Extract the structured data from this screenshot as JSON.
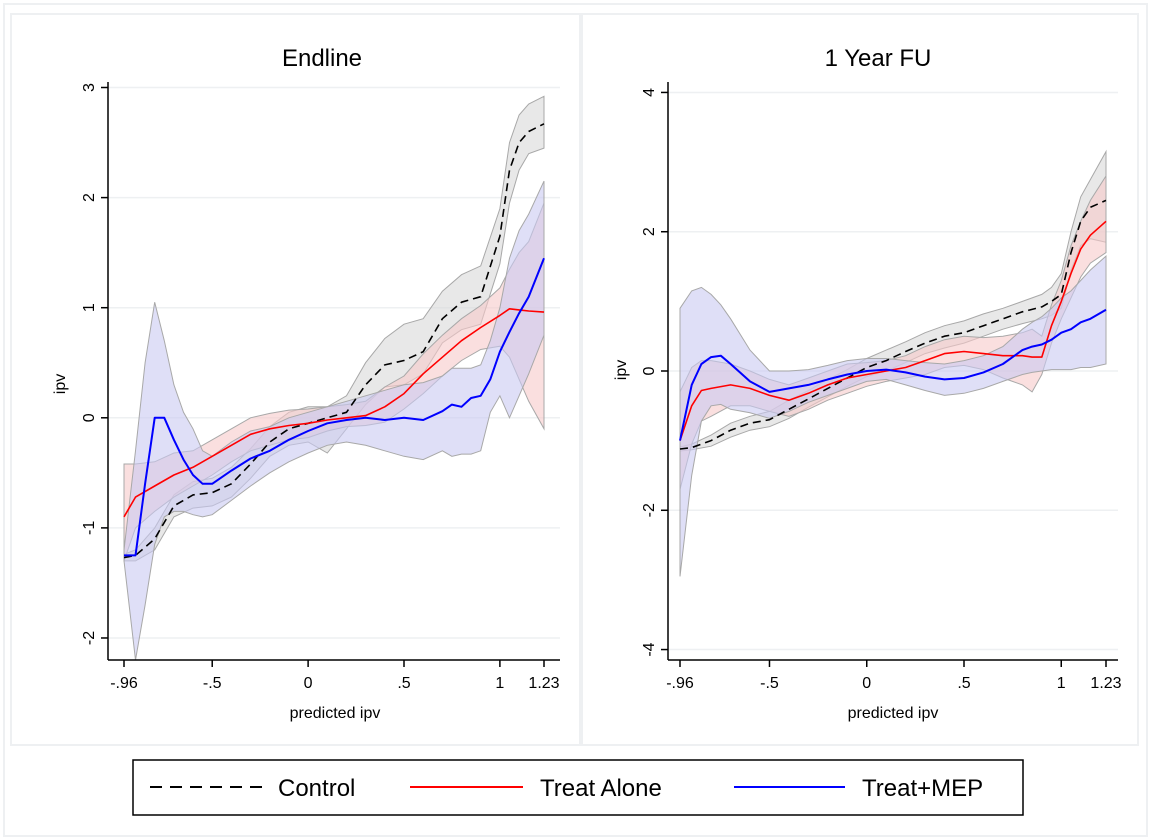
{
  "colors": {
    "control": "#000000",
    "treat_alone": "#ff0000",
    "treat_mep": "#0000ff",
    "control_band": "#d9d9d9",
    "treat_alone_band": "#f7caca",
    "treat_mep_band": "#c9c9f2",
    "band_edge": "#a8a8a8",
    "grid": "#eef0f2"
  },
  "legend": {
    "control": "Control",
    "treat_alone": "Treat Alone",
    "treat_mep": "Treat+MEP",
    "placement": "bottom"
  },
  "chart_data": [
    {
      "type": "line",
      "title": "Endline",
      "xlabel": "predicted ipv",
      "ylabel": "ipv",
      "xlim": [
        -0.96,
        1.23
      ],
      "ylim": [
        -2.2,
        3.05
      ],
      "xticks": [
        -0.96,
        -0.5,
        0,
        0.5,
        1,
        1.23
      ],
      "xtick_labels": [
        "-.96",
        "-.5",
        "0",
        ".5",
        "1",
        "1.23"
      ],
      "yticks": [
        -2,
        -1,
        0,
        1,
        2,
        3
      ],
      "ytick_labels": [
        "-2",
        "-1",
        "0",
        "1",
        "2",
        "3"
      ],
      "grid": true,
      "series": [
        {
          "key": "control",
          "name": "Control",
          "style": "dashed",
          "x": [
            -0.96,
            -0.9,
            -0.8,
            -0.7,
            -0.6,
            -0.5,
            -0.4,
            -0.3,
            -0.2,
            -0.1,
            0,
            0.1,
            0.2,
            0.3,
            0.4,
            0.5,
            0.6,
            0.7,
            0.8,
            0.9,
            1.0,
            1.05,
            1.1,
            1.15,
            1.23
          ],
          "y": [
            -1.27,
            -1.25,
            -1.1,
            -0.8,
            -0.7,
            -0.68,
            -0.6,
            -0.42,
            -0.22,
            -0.1,
            -0.05,
            0.0,
            0.05,
            0.3,
            0.48,
            0.52,
            0.6,
            0.9,
            1.05,
            1.1,
            1.65,
            2.25,
            2.5,
            2.6,
            2.67
          ],
          "lower": [
            -1.3,
            -1.3,
            -1.2,
            -0.9,
            -0.82,
            -0.8,
            -0.72,
            -0.55,
            -0.35,
            -0.25,
            -0.22,
            -0.32,
            -0.1,
            0.12,
            0.28,
            0.3,
            0.4,
            0.68,
            0.8,
            0.85,
            1.4,
            1.95,
            2.25,
            2.4,
            2.45
          ],
          "upper": [
            -1.24,
            -1.2,
            -1.0,
            -0.7,
            -0.58,
            -0.55,
            -0.45,
            -0.28,
            -0.08,
            0.05,
            0.1,
            0.1,
            0.2,
            0.5,
            0.72,
            0.85,
            0.9,
            1.15,
            1.3,
            1.38,
            1.9,
            2.5,
            2.75,
            2.85,
            2.92
          ]
        },
        {
          "key": "treat_alone",
          "name": "Treat Alone",
          "style": "solid",
          "x": [
            -0.96,
            -0.9,
            -0.8,
            -0.7,
            -0.6,
            -0.5,
            -0.4,
            -0.3,
            -0.2,
            -0.1,
            0,
            0.1,
            0.2,
            0.3,
            0.4,
            0.5,
            0.6,
            0.7,
            0.8,
            0.9,
            1.0,
            1.05,
            1.1,
            1.15,
            1.23
          ],
          "y": [
            -0.9,
            -0.72,
            -0.62,
            -0.52,
            -0.45,
            -0.35,
            -0.25,
            -0.15,
            -0.1,
            -0.07,
            -0.05,
            -0.02,
            0.0,
            0.02,
            0.1,
            0.22,
            0.4,
            0.55,
            0.7,
            0.82,
            0.93,
            0.99,
            0.98,
            0.97,
            0.96
          ],
          "lower": [
            -1.3,
            -1.0,
            -0.85,
            -0.72,
            -0.62,
            -0.52,
            -0.4,
            -0.3,
            -0.25,
            -0.2,
            -0.18,
            -0.12,
            -0.08,
            -0.07,
            -0.04,
            0.08,
            0.22,
            0.38,
            0.52,
            0.62,
            0.65,
            0.55,
            0.35,
            0.15,
            -0.1
          ],
          "upper": [
            -0.42,
            -0.42,
            -0.4,
            -0.32,
            -0.3,
            -0.2,
            -0.1,
            0.0,
            0.04,
            0.07,
            0.08,
            0.1,
            0.12,
            0.15,
            0.28,
            0.38,
            0.58,
            0.75,
            0.9,
            1.02,
            1.18,
            1.35,
            1.5,
            1.6,
            1.95
          ]
        },
        {
          "key": "treat_mep",
          "name": "Treat+MEP",
          "style": "solid",
          "x": [
            -0.96,
            -0.9,
            -0.85,
            -0.8,
            -0.75,
            -0.7,
            -0.65,
            -0.6,
            -0.55,
            -0.5,
            -0.4,
            -0.3,
            -0.2,
            -0.1,
            0,
            0.1,
            0.2,
            0.3,
            0.4,
            0.5,
            0.6,
            0.7,
            0.75,
            0.8,
            0.85,
            0.9,
            0.95,
            1.0,
            1.05,
            1.1,
            1.15,
            1.23
          ],
          "y": [
            -1.25,
            -1.25,
            -0.6,
            0.0,
            0.0,
            -0.2,
            -0.38,
            -0.52,
            -0.6,
            -0.6,
            -0.48,
            -0.37,
            -0.3,
            -0.2,
            -0.12,
            -0.05,
            -0.02,
            0.0,
            -0.02,
            0.0,
            -0.02,
            0.06,
            0.12,
            0.1,
            0.18,
            0.2,
            0.35,
            0.6,
            0.78,
            0.95,
            1.1,
            1.45
          ],
          "lower": [
            -1.3,
            -2.2,
            -1.7,
            -1.15,
            -0.9,
            -0.85,
            -0.85,
            -0.88,
            -0.9,
            -0.88,
            -0.75,
            -0.62,
            -0.5,
            -0.4,
            -0.32,
            -0.25,
            -0.22,
            -0.25,
            -0.3,
            -0.35,
            -0.38,
            -0.3,
            -0.35,
            -0.33,
            -0.33,
            -0.3,
            0.05,
            0.2,
            0.0,
            0.2,
            0.4,
            0.75
          ],
          "upper": [
            -1.2,
            -0.3,
            0.5,
            1.05,
            0.7,
            0.3,
            0.05,
            -0.1,
            -0.3,
            -0.35,
            -0.22,
            -0.12,
            -0.08,
            0.0,
            0.05,
            0.1,
            0.15,
            0.2,
            0.25,
            0.3,
            0.32,
            0.38,
            0.45,
            0.45,
            0.45,
            0.48,
            0.7,
            1.0,
            1.45,
            1.7,
            1.85,
            2.15
          ]
        }
      ]
    },
    {
      "type": "line",
      "title": "1 Year FU",
      "xlabel": "predicted ipv",
      "ylabel": "ipv",
      "xlim": [
        -0.96,
        1.23
      ],
      "ylim": [
        -4.15,
        4.15
      ],
      "xticks": [
        -0.96,
        -0.5,
        0,
        0.5,
        1,
        1.23
      ],
      "xtick_labels": [
        "-.96",
        "-.5",
        "0",
        ".5",
        "1",
        "1.23"
      ],
      "yticks": [
        -4,
        -2,
        0,
        2,
        4
      ],
      "ytick_labels": [
        "-4",
        "-2",
        "0",
        "2",
        "4"
      ],
      "grid": true,
      "series": [
        {
          "key": "control",
          "name": "Control",
          "style": "dashed",
          "x": [
            -0.96,
            -0.9,
            -0.8,
            -0.7,
            -0.6,
            -0.5,
            -0.4,
            -0.3,
            -0.2,
            -0.1,
            0,
            0.1,
            0.2,
            0.3,
            0.4,
            0.5,
            0.6,
            0.7,
            0.8,
            0.9,
            0.95,
            1.0,
            1.05,
            1.1,
            1.15,
            1.23
          ],
          "y": [
            -1.12,
            -1.1,
            -1.0,
            -0.85,
            -0.75,
            -0.7,
            -0.55,
            -0.4,
            -0.25,
            -0.1,
            0.05,
            0.15,
            0.28,
            0.4,
            0.5,
            0.55,
            0.65,
            0.75,
            0.85,
            0.92,
            1.0,
            1.1,
            1.7,
            2.15,
            2.35,
            2.45
          ],
          "lower": [
            -1.15,
            -1.13,
            -1.08,
            -0.95,
            -0.85,
            -0.8,
            -0.68,
            -0.52,
            -0.37,
            -0.22,
            -0.08,
            0.0,
            0.12,
            0.25,
            0.33,
            0.4,
            0.5,
            0.6,
            0.68,
            0.75,
            0.8,
            0.9,
            1.45,
            1.8,
            1.9,
            1.85
          ],
          "upper": [
            -1.09,
            -1.05,
            -0.92,
            -0.75,
            -0.65,
            -0.58,
            -0.42,
            -0.28,
            -0.12,
            0.02,
            0.18,
            0.3,
            0.42,
            0.55,
            0.65,
            0.72,
            0.82,
            0.9,
            1.0,
            1.1,
            1.2,
            1.4,
            2.0,
            2.5,
            2.75,
            3.15
          ]
        },
        {
          "key": "treat_alone",
          "name": "Treat Alone",
          "style": "solid",
          "x": [
            -0.96,
            -0.9,
            -0.85,
            -0.8,
            -0.7,
            -0.6,
            -0.5,
            -0.4,
            -0.3,
            -0.2,
            -0.1,
            0,
            0.1,
            0.2,
            0.3,
            0.4,
            0.5,
            0.6,
            0.7,
            0.8,
            0.85,
            0.9,
            0.95,
            1.0,
            1.05,
            1.1,
            1.15,
            1.23
          ],
          "y": [
            -1.0,
            -0.5,
            -0.28,
            -0.25,
            -0.2,
            -0.25,
            -0.35,
            -0.42,
            -0.32,
            -0.2,
            -0.1,
            -0.05,
            0.0,
            0.05,
            0.15,
            0.25,
            0.28,
            0.25,
            0.22,
            0.22,
            0.2,
            0.2,
            0.65,
            1.0,
            1.4,
            1.75,
            1.95,
            2.15
          ],
          "lower": [
            -1.7,
            -1.05,
            -0.72,
            -0.65,
            -0.5,
            -0.5,
            -0.58,
            -0.65,
            -0.55,
            -0.42,
            -0.32,
            -0.22,
            -0.15,
            -0.1,
            -0.05,
            0.05,
            0.08,
            0.02,
            -0.1,
            -0.2,
            -0.3,
            -0.05,
            0.4,
            0.75,
            1.05,
            1.35,
            1.55,
            1.7
          ],
          "upper": [
            -0.3,
            0.05,
            0.15,
            0.15,
            0.1,
            0.0,
            -0.12,
            -0.2,
            -0.1,
            0.0,
            0.1,
            0.12,
            0.15,
            0.22,
            0.35,
            0.45,
            0.5,
            0.48,
            0.5,
            0.55,
            0.6,
            0.5,
            0.95,
            1.3,
            1.8,
            2.15,
            2.45,
            2.8
          ]
        },
        {
          "key": "treat_mep",
          "name": "Treat+MEP",
          "style": "solid",
          "x": [
            -0.96,
            -0.9,
            -0.85,
            -0.8,
            -0.75,
            -0.7,
            -0.6,
            -0.5,
            -0.4,
            -0.3,
            -0.2,
            -0.1,
            0,
            0.1,
            0.2,
            0.3,
            0.4,
            0.5,
            0.6,
            0.7,
            0.8,
            0.85,
            0.9,
            0.95,
            1.0,
            1.05,
            1.1,
            1.15,
            1.23
          ],
          "y": [
            -1.0,
            -0.2,
            0.1,
            0.2,
            0.22,
            0.1,
            -0.15,
            -0.3,
            -0.25,
            -0.2,
            -0.12,
            -0.05,
            0.0,
            0.02,
            -0.02,
            -0.08,
            -0.12,
            -0.1,
            -0.02,
            0.1,
            0.3,
            0.35,
            0.38,
            0.45,
            0.55,
            0.6,
            0.7,
            0.75,
            0.88
          ],
          "lower": [
            -2.95,
            -1.5,
            -0.72,
            -0.5,
            -0.48,
            -0.55,
            -0.6,
            -0.68,
            -0.58,
            -0.45,
            -0.35,
            -0.25,
            -0.15,
            -0.12,
            -0.2,
            -0.28,
            -0.35,
            -0.32,
            -0.25,
            -0.15,
            -0.05,
            -0.02,
            0.0,
            0.02,
            0.02,
            0.02,
            0.05,
            0.05,
            0.1
          ],
          "upper": [
            0.9,
            1.15,
            1.2,
            1.1,
            0.95,
            0.75,
            0.3,
            0.0,
            0.0,
            0.02,
            0.08,
            0.15,
            0.18,
            0.18,
            0.15,
            0.12,
            0.1,
            0.15,
            0.22,
            0.35,
            0.6,
            0.7,
            0.78,
            0.9,
            1.05,
            1.15,
            1.3,
            1.45,
            1.65
          ]
        }
      ]
    }
  ]
}
